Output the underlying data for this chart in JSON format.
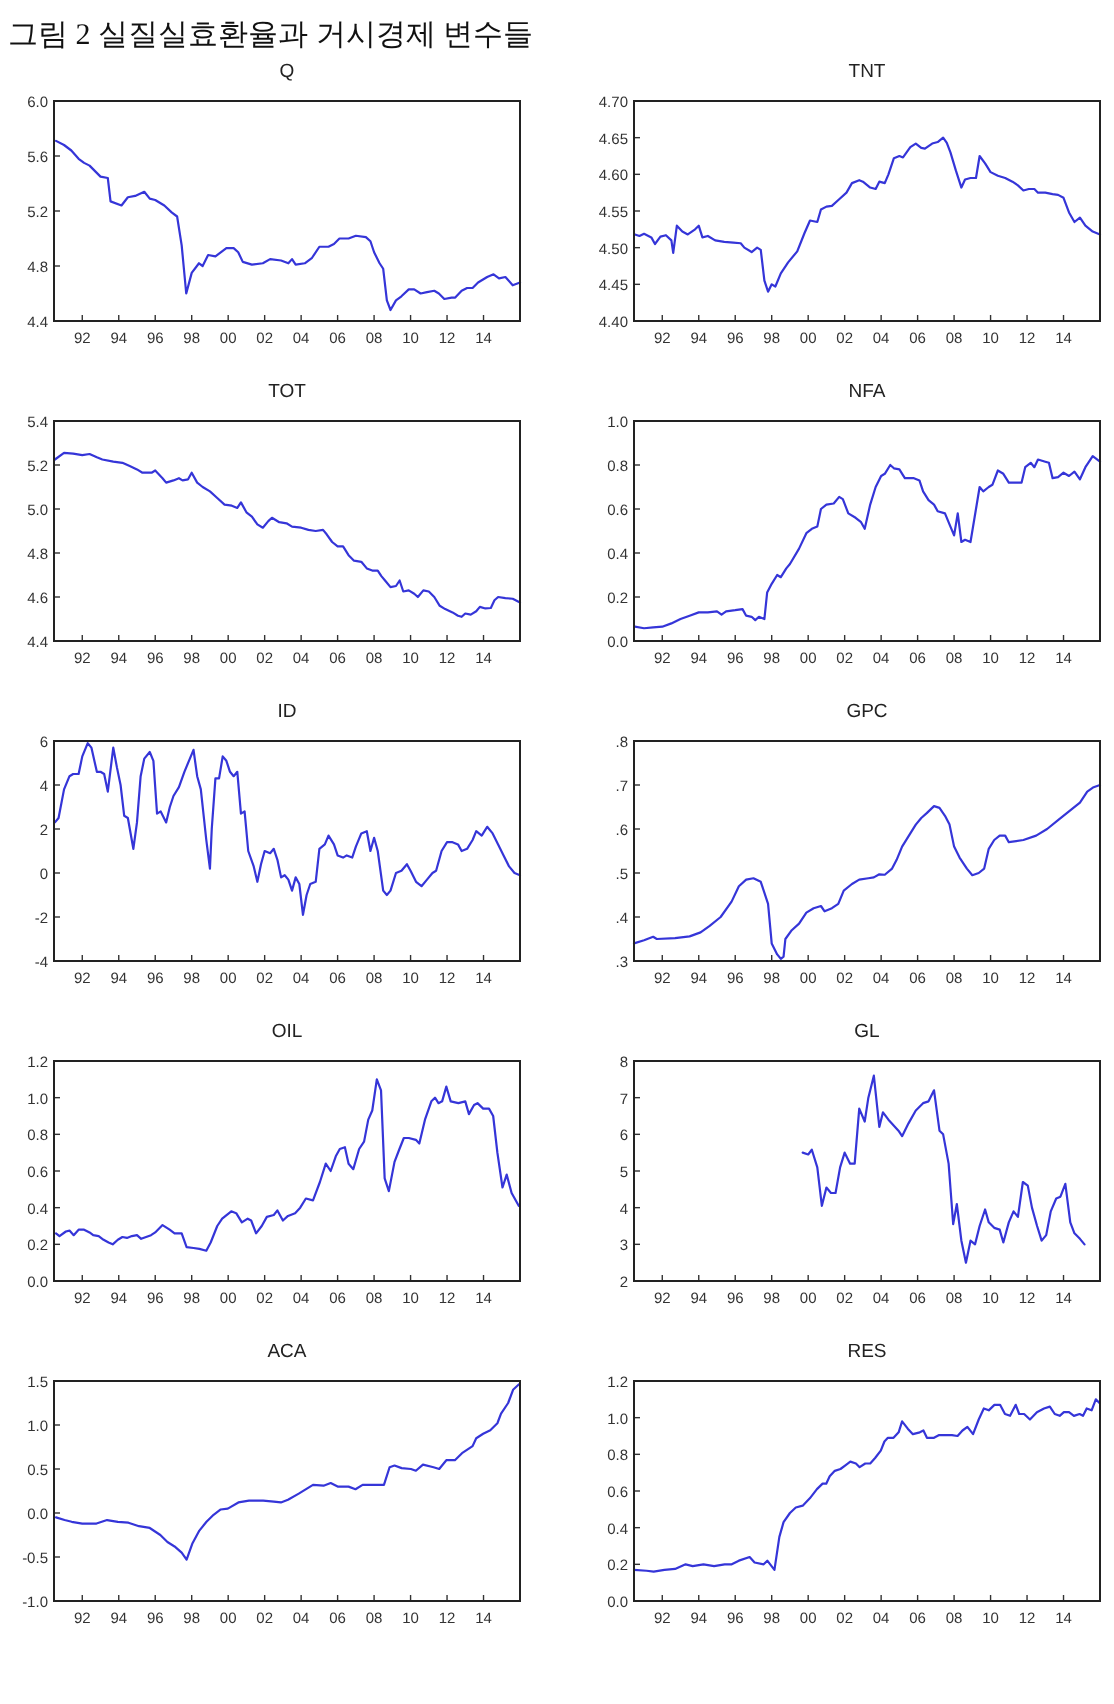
{
  "chart_data": [
    {
      "type": "line",
      "title": "Q",
      "annotations": [
        "그림 2 실질실효환율과 거시경제 변수들"
      ],
      "color": "#3535d8",
      "xlim": [
        1990.45,
        2016
      ],
      "xticks": [
        {
          "value": 1992,
          "label": "92"
        },
        {
          "value": 1994,
          "label": "94"
        },
        {
          "value": 1996,
          "label": "96"
        },
        {
          "value": 1998,
          "label": "98"
        },
        {
          "value": 2000,
          "label": "00"
        },
        {
          "value": 2002,
          "label": "02"
        },
        {
          "value": 2004,
          "label": "04"
        },
        {
          "value": 2006,
          "label": "06"
        },
        {
          "value": 2008,
          "label": "08"
        },
        {
          "value": 2010,
          "label": "10"
        },
        {
          "value": 2012,
          "label": "12"
        },
        {
          "value": 2014,
          "label": "14"
        }
      ],
      "ylim": [
        4.4,
        6.0
      ],
      "yticks": [
        {
          "value": 4.4,
          "label": "4.4"
        },
        {
          "value": 4.8,
          "label": "4.8"
        },
        {
          "value": 5.2,
          "label": "5.2"
        },
        {
          "value": 5.6,
          "label": "5.6"
        },
        {
          "value": 6,
          "label": "6.0"
        }
      ],
      "x": [
        1990.56,
        1991.0,
        1991.4,
        1991.8,
        1992.1,
        1992.4,
        1993.0,
        1993.4,
        1993.55,
        1994.15,
        1994.5,
        1994.9,
        1995.4,
        1995.7,
        1996.0,
        1996.5,
        1996.9,
        1997.2,
        1997.45,
        1997.7,
        1998.0,
        1998.4,
        1998.6,
        1998.9,
        1999.3,
        1999.9,
        2000.3,
        2000.55,
        2000.8,
        2001.3,
        2001.9,
        2002.3,
        2002.9,
        2003.3,
        2003.5,
        2003.7,
        2004.2,
        2004.6,
        2005.0,
        2005.5,
        2005.8,
        2006.1,
        2006.6,
        2007.0,
        2007.55,
        2007.8,
        2008.0,
        2008.3,
        2008.5,
        2008.7,
        2008.9,
        2009.2,
        2009.5,
        2009.9,
        2010.2,
        2010.55,
        2010.9,
        2011.3,
        2011.55,
        2011.85,
        2012.25,
        2012.45,
        2012.8,
        2013.1,
        2013.4,
        2013.7,
        2014.2,
        2014.55,
        2014.85,
        2015.2,
        2015.6,
        2016.0
      ],
      "values": [
        5.71,
        5.68,
        5.64,
        5.58,
        5.55,
        5.53,
        5.45,
        5.44,
        5.27,
        5.24,
        5.3,
        5.31,
        5.34,
        5.29,
        5.28,
        5.24,
        5.19,
        5.16,
        4.95,
        4.6,
        4.75,
        4.82,
        4.8,
        4.88,
        4.87,
        4.93,
        4.93,
        4.9,
        4.83,
        4.81,
        4.82,
        4.85,
        4.84,
        4.82,
        4.85,
        4.81,
        4.82,
        4.86,
        4.94,
        4.94,
        4.96,
        5.0,
        5.0,
        5.02,
        5.01,
        4.98,
        4.9,
        4.82,
        4.78,
        4.55,
        4.48,
        4.55,
        4.58,
        4.63,
        4.63,
        4.6,
        4.61,
        4.62,
        4.6,
        4.56,
        4.57,
        4.57,
        4.62,
        4.64,
        4.64,
        4.68,
        4.72,
        4.74,
        4.71,
        4.72,
        4.66,
        4.68
      ]
    },
    {
      "type": "line",
      "title": "TNT",
      "color": "#3535d8",
      "xlim": [
        1990.45,
        2016
      ],
      "xticks": [
        {
          "value": 1992,
          "label": "92"
        },
        {
          "value": 1994,
          "label": "94"
        },
        {
          "value": 1996,
          "label": "96"
        },
        {
          "value": 1998,
          "label": "98"
        },
        {
          "value": 2000,
          "label": "00"
        },
        {
          "value": 2002,
          "label": "02"
        },
        {
          "value": 2004,
          "label": "04"
        },
        {
          "value": 2006,
          "label": "06"
        },
        {
          "value": 2008,
          "label": "08"
        },
        {
          "value": 2010,
          "label": "10"
        },
        {
          "value": 2012,
          "label": "12"
        },
        {
          "value": 2014,
          "label": "14"
        }
      ],
      "ylim": [
        4.4,
        4.7
      ],
      "yticks": [
        {
          "value": 4.4,
          "label": "4.40"
        },
        {
          "value": 4.45,
          "label": "4.45"
        },
        {
          "value": 4.5,
          "label": "4.50"
        },
        {
          "value": 4.55,
          "label": "4.55"
        },
        {
          "value": 4.6,
          "label": "4.60"
        },
        {
          "value": 4.65,
          "label": "4.65"
        },
        {
          "value": 4.7,
          "label": "4.70"
        }
      ],
      "x": [
        1990.5,
        1990.75,
        1991.0,
        1991.4,
        1991.6,
        1991.9,
        1992.2,
        1992.5,
        1992.6,
        1992.8,
        1993.1,
        1993.4,
        1993.8,
        1994.0,
        1994.2,
        1994.5,
        1994.9,
        1995.4,
        1995.9,
        1996.3,
        1996.5,
        1996.9,
        1997.2,
        1997.4,
        1997.6,
        1997.8,
        1998.0,
        1998.2,
        1998.5,
        1998.9,
        1999.4,
        1999.8,
        2000.1,
        2000.5,
        2000.7,
        2001.0,
        2001.3,
        2001.7,
        2002.1,
        2002.4,
        2002.8,
        2003.0,
        2003.4,
        2003.7,
        2003.9,
        2004.2,
        2004.4,
        2004.7,
        2005.0,
        2005.2,
        2005.6,
        2005.9,
        2006.2,
        2006.4,
        2006.8,
        2007.1,
        2007.4,
        2007.6,
        2007.8,
        2008.1,
        2008.4,
        2008.6,
        2008.9,
        2009.2,
        2009.4,
        2009.7,
        2010.0,
        2010.4,
        2010.8,
        2011.2,
        2011.5,
        2011.8,
        2012.1,
        2012.4,
        2012.6,
        2013.0,
        2013.4,
        2013.7,
        2014.0,
        2014.3,
        2014.6,
        2014.9,
        2015.2,
        2015.6,
        2016.0
      ],
      "values": [
        4.518,
        4.516,
        4.519,
        4.514,
        4.505,
        4.515,
        4.517,
        4.51,
        4.493,
        4.53,
        4.522,
        4.518,
        4.525,
        4.53,
        4.514,
        4.516,
        4.51,
        4.508,
        4.507,
        4.506,
        4.5,
        4.494,
        4.5,
        4.497,
        4.455,
        4.44,
        4.45,
        4.447,
        4.465,
        4.48,
        4.495,
        4.52,
        4.537,
        4.535,
        4.552,
        4.556,
        4.557,
        4.566,
        4.575,
        4.588,
        4.592,
        4.59,
        4.582,
        4.58,
        4.59,
        4.588,
        4.6,
        4.622,
        4.625,
        4.623,
        4.637,
        4.642,
        4.636,
        4.635,
        4.642,
        4.644,
        4.65,
        4.643,
        4.63,
        4.605,
        4.582,
        4.593,
        4.595,
        4.595,
        4.625,
        4.615,
        4.603,
        4.598,
        4.595,
        4.59,
        4.585,
        4.578,
        4.58,
        4.58,
        4.575,
        4.575,
        4.573,
        4.572,
        4.568,
        4.548,
        4.535,
        4.541,
        4.53,
        4.522,
        4.518
      ]
    },
    {
      "type": "line",
      "title": "TOT",
      "color": "#3535d8",
      "xlim": [
        1990.45,
        2016
      ],
      "xticks": [
        {
          "value": 1992,
          "label": "92"
        },
        {
          "value": 1994,
          "label": "94"
        },
        {
          "value": 1996,
          "label": "96"
        },
        {
          "value": 1998,
          "label": "98"
        },
        {
          "value": 2000,
          "label": "00"
        },
        {
          "value": 2002,
          "label": "02"
        },
        {
          "value": 2004,
          "label": "04"
        },
        {
          "value": 2006,
          "label": "06"
        },
        {
          "value": 2008,
          "label": "08"
        },
        {
          "value": 2010,
          "label": "10"
        },
        {
          "value": 2012,
          "label": "12"
        },
        {
          "value": 2014,
          "label": "14"
        }
      ],
      "ylim": [
        4.4,
        5.4
      ],
      "yticks": [
        {
          "value": 4.4,
          "label": "4.4"
        },
        {
          "value": 4.6,
          "label": "4.6"
        },
        {
          "value": 4.8,
          "label": "4.8"
        },
        {
          "value": 5,
          "label": "5.0"
        },
        {
          "value": 5.2,
          "label": "5.2"
        },
        {
          "value": 5.4,
          "label": "5.4"
        }
      ],
      "x": [
        1990.5,
        1991.0,
        1991.5,
        1992.0,
        1992.4,
        1992.8,
        1993.1,
        1993.7,
        1994.2,
        1994.6,
        1995.0,
        1995.3,
        1995.8,
        1996.0,
        1996.4,
        1996.6,
        1997.0,
        1997.3,
        1997.5,
        1997.8,
        1998.0,
        1998.3,
        1998.6,
        1999.0,
        1999.4,
        1999.8,
        2000.2,
        2000.5,
        2000.7,
        2001.0,
        2001.3,
        2001.6,
        2001.9,
        2002.2,
        2002.4,
        2002.8,
        2003.2,
        2003.5,
        2004.0,
        2004.4,
        2004.8,
        2005.2,
        2005.4,
        2005.7,
        2006.0,
        2006.3,
        2006.6,
        2006.9,
        2007.3,
        2007.6,
        2007.9,
        2008.2,
        2008.4,
        2008.6,
        2008.9,
        2009.2,
        2009.4,
        2009.6,
        2009.9,
        2010.2,
        2010.4,
        2010.7,
        2011.0,
        2011.3,
        2011.6,
        2011.9,
        2012.3,
        2012.6,
        2012.8,
        2013.0,
        2013.3,
        2013.6,
        2013.8,
        2014.1,
        2014.4,
        2014.6,
        2014.8,
        2015.2,
        2015.6,
        2016.0
      ],
      "values": [
        5.225,
        5.255,
        5.252,
        5.245,
        5.25,
        5.235,
        5.225,
        5.215,
        5.21,
        5.195,
        5.18,
        5.165,
        5.165,
        5.175,
        5.14,
        5.12,
        5.13,
        5.14,
        5.13,
        5.135,
        5.165,
        5.12,
        5.1,
        5.08,
        5.05,
        5.02,
        5.015,
        5.005,
        5.03,
        4.985,
        4.965,
        4.93,
        4.915,
        4.945,
        4.96,
        4.94,
        4.935,
        4.92,
        4.915,
        4.905,
        4.9,
        4.905,
        4.885,
        4.85,
        4.83,
        4.83,
        4.79,
        4.765,
        4.76,
        4.73,
        4.72,
        4.72,
        4.695,
        4.675,
        4.645,
        4.65,
        4.675,
        4.625,
        4.63,
        4.615,
        4.6,
        4.63,
        4.625,
        4.6,
        4.56,
        4.545,
        4.53,
        4.515,
        4.51,
        4.525,
        4.52,
        4.535,
        4.555,
        4.548,
        4.55,
        4.585,
        4.6,
        4.595,
        4.592,
        4.575
      ]
    },
    {
      "type": "line",
      "title": "NFA",
      "color": "#3535d8",
      "xlim": [
        1990.45,
        2016
      ],
      "xticks": [
        {
          "value": 1992,
          "label": "92"
        },
        {
          "value": 1994,
          "label": "94"
        },
        {
          "value": 1996,
          "label": "96"
        },
        {
          "value": 1998,
          "label": "98"
        },
        {
          "value": 2000,
          "label": "00"
        },
        {
          "value": 2002,
          "label": "02"
        },
        {
          "value": 2004,
          "label": "04"
        },
        {
          "value": 2006,
          "label": "06"
        },
        {
          "value": 2008,
          "label": "08"
        },
        {
          "value": 2010,
          "label": "10"
        },
        {
          "value": 2012,
          "label": "12"
        },
        {
          "value": 2014,
          "label": "14"
        }
      ],
      "ylim": [
        0,
        1.0
      ],
      "yticks": [
        {
          "value": 0,
          "label": "0.0"
        },
        {
          "value": 0.2,
          "label": "0.2"
        },
        {
          "value": 0.4,
          "label": "0.4"
        },
        {
          "value": 0.6,
          "label": "0.6"
        },
        {
          "value": 0.8,
          "label": "0.8"
        },
        {
          "value": 1,
          "label": "1.0"
        }
      ],
      "x": [
        1990.5,
        1991.0,
        1991.5,
        1992.0,
        1992.5,
        1993.0,
        1993.5,
        1994.0,
        1994.5,
        1995.0,
        1995.25,
        1995.5,
        1996.0,
        1996.4,
        1996.6,
        1996.9,
        1997.1,
        1997.3,
        1997.6,
        1997.75,
        1998.0,
        1998.3,
        1998.5,
        1998.8,
        1999.0,
        1999.5,
        1999.9,
        2000.2,
        2000.5,
        2000.7,
        2001.0,
        2001.4,
        2001.7,
        2001.9,
        2002.2,
        2002.6,
        2002.9,
        2003.1,
        2003.4,
        2003.7,
        2004.0,
        2004.2,
        2004.5,
        2004.7,
        2005.0,
        2005.3,
        2005.8,
        2006.1,
        2006.3,
        2006.6,
        2006.9,
        2007.1,
        2007.5,
        2007.8,
        2008.0,
        2008.2,
        2008.4,
        2008.6,
        2008.9,
        2009.2,
        2009.4,
        2009.6,
        2009.9,
        2010.1,
        2010.4,
        2010.7,
        2011.0,
        2011.4,
        2011.7,
        2011.9,
        2012.2,
        2012.4,
        2012.6,
        2013.0,
        2013.2,
        2013.4,
        2013.7,
        2014.0,
        2014.3,
        2014.6,
        2014.9,
        2015.2,
        2015.6,
        2016.0
      ],
      "values": [
        0.065,
        0.058,
        0.062,
        0.065,
        0.08,
        0.1,
        0.115,
        0.13,
        0.13,
        0.135,
        0.12,
        0.135,
        0.14,
        0.145,
        0.115,
        0.11,
        0.095,
        0.11,
        0.1,
        0.22,
        0.26,
        0.3,
        0.29,
        0.33,
        0.35,
        0.42,
        0.49,
        0.51,
        0.52,
        0.6,
        0.62,
        0.625,
        0.655,
        0.645,
        0.58,
        0.56,
        0.54,
        0.51,
        0.62,
        0.7,
        0.75,
        0.76,
        0.8,
        0.785,
        0.78,
        0.74,
        0.74,
        0.73,
        0.68,
        0.64,
        0.62,
        0.59,
        0.58,
        0.52,
        0.48,
        0.58,
        0.45,
        0.46,
        0.45,
        0.6,
        0.7,
        0.68,
        0.7,
        0.71,
        0.775,
        0.76,
        0.72,
        0.72,
        0.72,
        0.79,
        0.81,
        0.79,
        0.825,
        0.815,
        0.81,
        0.74,
        0.745,
        0.765,
        0.75,
        0.77,
        0.735,
        0.79,
        0.84,
        0.815
      ]
    },
    {
      "type": "line",
      "title": "ID",
      "color": "#3535d8",
      "xlim": [
        1990.45,
        2016
      ],
      "xticks": [
        {
          "value": 1992,
          "label": "92"
        },
        {
          "value": 1994,
          "label": "94"
        },
        {
          "value": 1996,
          "label": "96"
        },
        {
          "value": 1998,
          "label": "98"
        },
        {
          "value": 2000,
          "label": "00"
        },
        {
          "value": 2002,
          "label": "02"
        },
        {
          "value": 2004,
          "label": "04"
        },
        {
          "value": 2006,
          "label": "06"
        },
        {
          "value": 2008,
          "label": "08"
        },
        {
          "value": 2010,
          "label": "10"
        },
        {
          "value": 2012,
          "label": "12"
        },
        {
          "value": 2014,
          "label": "14"
        }
      ],
      "ylim": [
        -4,
        6
      ],
      "yticks": [
        -4,
        -2,
        0,
        2,
        4,
        6
      ],
      "x": [
        1990.5,
        1990.7,
        1991.0,
        1991.3,
        1991.5,
        1991.8,
        1992.0,
        1992.3,
        1992.5,
        1992.8,
        1993.0,
        1993.2,
        1993.4,
        1993.7,
        1993.9,
        1994.1,
        1994.3,
        1994.5,
        1994.8,
        1995.0,
        1995.2,
        1995.4,
        1995.7,
        1995.9,
        1996.1,
        1996.3,
        1996.6,
        1996.8,
        1997.0,
        1997.3,
        1997.6,
        1997.9,
        1998.1,
        1998.3,
        1998.5,
        1998.8,
        1999.0,
        1999.1,
        1999.3,
        1999.5,
        1999.7,
        1999.9,
        2000.1,
        2000.3,
        2000.5,
        2000.7,
        2000.9,
        2001.1,
        2001.4,
        2001.6,
        2001.8,
        2002.0,
        2002.3,
        2002.5,
        2002.7,
        2002.9,
        2003.1,
        2003.3,
        2003.5,
        2003.7,
        2003.9,
        2004.1,
        2004.3,
        2004.5,
        2004.8,
        2005.0,
        2005.3,
        2005.5,
        2005.8,
        2006.0,
        2006.3,
        2006.5,
        2006.8,
        2007.0,
        2007.3,
        2007.6,
        2007.8,
        2008.0,
        2008.2,
        2008.5,
        2008.7,
        2008.9,
        2009.2,
        2009.5,
        2009.8,
        2010.0,
        2010.3,
        2010.6,
        2010.9,
        2011.2,
        2011.4,
        2011.7,
        2012.0,
        2012.3,
        2012.6,
        2012.8,
        2013.1,
        2013.4,
        2013.6,
        2013.9,
        2014.2,
        2014.5,
        2014.8,
        2015.1,
        2015.4,
        2015.7,
        2016.0
      ],
      "values": [
        2.3,
        2.5,
        3.8,
        4.4,
        4.5,
        4.5,
        5.3,
        5.9,
        5.7,
        4.6,
        4.6,
        4.5,
        3.7,
        5.7,
        4.8,
        4.0,
        2.6,
        2.5,
        1.1,
        2.3,
        4.4,
        5.2,
        5.5,
        5.1,
        2.7,
        2.8,
        2.3,
        3.0,
        3.5,
        3.9,
        4.6,
        5.2,
        5.6,
        4.4,
        3.8,
        1.5,
        0.2,
        2.0,
        4.3,
        4.3,
        5.3,
        5.1,
        4.6,
        4.4,
        4.6,
        2.7,
        2.8,
        1.0,
        0.3,
        -0.4,
        0.4,
        1.0,
        0.9,
        1.1,
        0.6,
        -0.2,
        -0.1,
        -0.3,
        -0.8,
        -0.2,
        -0.5,
        -1.9,
        -1.0,
        -0.5,
        -0.4,
        1.1,
        1.3,
        1.7,
        1.3,
        0.8,
        0.7,
        0.8,
        0.7,
        1.2,
        1.8,
        1.9,
        1.0,
        1.6,
        1.0,
        -0.8,
        -1.0,
        -0.8,
        0.0,
        0.1,
        0.4,
        0.1,
        -0.4,
        -0.6,
        -0.3,
        0.0,
        0.1,
        1.0,
        1.4,
        1.4,
        1.3,
        1.0,
        1.1,
        1.5,
        1.9,
        1.7,
        2.1,
        1.8,
        1.3,
        0.8,
        0.3,
        0.0,
        -0.1
      ]
    },
    {
      "type": "line",
      "title": "GPC",
      "color": "#3535d8",
      "xlim": [
        1990.45,
        2016
      ],
      "xticks": [
        {
          "value": 1992,
          "label": "92"
        },
        {
          "value": 1994,
          "label": "94"
        },
        {
          "value": 1996,
          "label": "96"
        },
        {
          "value": 1998,
          "label": "98"
        },
        {
          "value": 2000,
          "label": "00"
        },
        {
          "value": 2002,
          "label": "02"
        },
        {
          "value": 2004,
          "label": "04"
        },
        {
          "value": 2006,
          "label": "06"
        },
        {
          "value": 2008,
          "label": "08"
        },
        {
          "value": 2010,
          "label": "10"
        },
        {
          "value": 2012,
          "label": "12"
        },
        {
          "value": 2014,
          "label": "14"
        }
      ],
      "ylim": [
        0.3,
        0.8
      ],
      "yticks": [
        {
          "value": 0.3,
          "label": ".3"
        },
        {
          "value": 0.4,
          "label": ".4"
        },
        {
          "value": 0.5,
          "label": ".5"
        },
        {
          "value": 0.6,
          "label": ".6"
        },
        {
          "value": 0.7,
          "label": ".7"
        },
        {
          "value": 0.8,
          "label": ".8"
        }
      ],
      "x": [
        1990.45,
        1991.0,
        1991.5,
        1991.7,
        1992.7,
        1993.5,
        1994.1,
        1994.6,
        1995.2,
        1995.8,
        1996.2,
        1996.6,
        1997.0,
        1997.4,
        1997.8,
        1998.0,
        1998.3,
        1998.5,
        1998.65,
        1998.75,
        1999.1,
        1999.5,
        1999.9,
        2000.3,
        2000.7,
        2000.9,
        2001.3,
        2001.65,
        2001.95,
        2002.4,
        2002.8,
        2003.3,
        2003.6,
        2003.9,
        2004.2,
        2004.6,
        2004.85,
        2005.15,
        2005.6,
        2005.9,
        2006.2,
        2006.5,
        2006.9,
        2007.2,
        2007.5,
        2007.75,
        2008.0,
        2008.3,
        2008.7,
        2009.0,
        2009.35,
        2009.65,
        2009.9,
        2010.2,
        2010.5,
        2010.8,
        2011.0,
        2011.8,
        2012.5,
        2013.1,
        2013.7,
        2014.3,
        2014.9,
        2015.3,
        2015.65,
        2016.0
      ],
      "values": [
        0.34,
        0.347,
        0.355,
        0.35,
        0.352,
        0.356,
        0.365,
        0.38,
        0.4,
        0.435,
        0.47,
        0.485,
        0.488,
        0.48,
        0.43,
        0.34,
        0.315,
        0.305,
        0.31,
        0.35,
        0.37,
        0.385,
        0.41,
        0.42,
        0.425,
        0.413,
        0.42,
        0.43,
        0.46,
        0.475,
        0.485,
        0.488,
        0.49,
        0.497,
        0.496,
        0.51,
        0.53,
        0.56,
        0.59,
        0.61,
        0.625,
        0.636,
        0.652,
        0.648,
        0.63,
        0.61,
        0.56,
        0.535,
        0.51,
        0.495,
        0.5,
        0.51,
        0.555,
        0.575,
        0.585,
        0.585,
        0.57,
        0.575,
        0.585,
        0.6,
        0.62,
        0.64,
        0.66,
        0.685,
        0.695,
        0.7
      ]
    },
    {
      "type": "line",
      "title": "OIL",
      "color": "#3535d8",
      "xlim": [
        1990.45,
        2016
      ],
      "xticks": [
        {
          "value": 1992,
          "label": "92"
        },
        {
          "value": 1994,
          "label": "94"
        },
        {
          "value": 1996,
          "label": "96"
        },
        {
          "value": 1998,
          "label": "98"
        },
        {
          "value": 2000,
          "label": "00"
        },
        {
          "value": 2002,
          "label": "02"
        },
        {
          "value": 2004,
          "label": "04"
        },
        {
          "value": 2006,
          "label": "06"
        },
        {
          "value": 2008,
          "label": "08"
        },
        {
          "value": 2010,
          "label": "10"
        },
        {
          "value": 2012,
          "label": "12"
        },
        {
          "value": 2014,
          "label": "14"
        }
      ],
      "ylim": [
        0,
        1.2
      ],
      "yticks": [
        {
          "value": 0,
          "label": "0.0"
        },
        {
          "value": 0.2,
          "label": "0.2"
        },
        {
          "value": 0.4,
          "label": "0.4"
        },
        {
          "value": 0.6,
          "label": "0.6"
        },
        {
          "value": 0.8,
          "label": "0.8"
        },
        {
          "value": 1,
          "label": "1.0"
        },
        {
          "value": 1.2,
          "label": "1.2"
        }
      ],
      "x": [
        1990.56,
        1990.75,
        1991.1,
        1991.3,
        1991.53,
        1991.8,
        1992.1,
        1992.4,
        1992.6,
        1992.9,
        1993.17,
        1993.44,
        1993.67,
        1993.95,
        1994.2,
        1994.45,
        1994.72,
        1995.0,
        1995.23,
        1995.5,
        1995.77,
        1996.0,
        1996.4,
        1996.79,
        1997.06,
        1997.45,
        1997.72,
        1998.1,
        1998.42,
        1998.8,
        1999.04,
        1999.4,
        1999.67,
        2000.17,
        2000.44,
        2000.75,
        2001.07,
        2001.26,
        2001.53,
        2001.84,
        2002.12,
        2002.5,
        2002.7,
        2003.0,
        2003.28,
        2003.67,
        2003.95,
        2004.26,
        2004.65,
        2005.03,
        2005.35,
        2005.62,
        2005.9,
        2006.12,
        2006.4,
        2006.6,
        2006.86,
        2007.18,
        2007.45,
        2007.68,
        2007.9,
        2008.15,
        2008.38,
        2008.58,
        2008.81,
        2009.12,
        2009.39,
        2009.63,
        2009.9,
        2010.29,
        2010.48,
        2010.79,
        2011.14,
        2011.34,
        2011.53,
        2011.73,
        2011.96,
        2012.2,
        2012.62,
        2013.0,
        2013.2,
        2013.48,
        2013.67,
        2013.98,
        2014.3,
        2014.53,
        2014.76,
        2015.04,
        2015.27,
        2015.54,
        2015.93
      ],
      "values": [
        0.26,
        0.245,
        0.27,
        0.275,
        0.25,
        0.28,
        0.28,
        0.265,
        0.25,
        0.245,
        0.225,
        0.21,
        0.2,
        0.225,
        0.24,
        0.235,
        0.245,
        0.25,
        0.23,
        0.24,
        0.25,
        0.265,
        0.305,
        0.28,
        0.26,
        0.26,
        0.185,
        0.18,
        0.175,
        0.165,
        0.21,
        0.3,
        0.34,
        0.38,
        0.37,
        0.32,
        0.34,
        0.33,
        0.26,
        0.3,
        0.35,
        0.36,
        0.385,
        0.33,
        0.355,
        0.37,
        0.4,
        0.45,
        0.44,
        0.54,
        0.64,
        0.6,
        0.68,
        0.72,
        0.73,
        0.64,
        0.61,
        0.72,
        0.76,
        0.88,
        0.93,
        1.1,
        1.04,
        0.56,
        0.49,
        0.65,
        0.72,
        0.78,
        0.78,
        0.77,
        0.75,
        0.88,
        0.98,
        1.0,
        0.97,
        0.98,
        1.06,
        0.98,
        0.97,
        0.98,
        0.91,
        0.96,
        0.97,
        0.94,
        0.94,
        0.9,
        0.7,
        0.51,
        0.58,
        0.48,
        0.41
      ]
    },
    {
      "type": "line",
      "title": "GL",
      "color": "#3535d8",
      "xlim": [
        1990.45,
        2016
      ],
      "xticks": [
        {
          "value": 1992,
          "label": "92"
        },
        {
          "value": 1994,
          "label": "94"
        },
        {
          "value": 1996,
          "label": "96"
        },
        {
          "value": 1998,
          "label": "98"
        },
        {
          "value": 2000,
          "label": "00"
        },
        {
          "value": 2002,
          "label": "02"
        },
        {
          "value": 2004,
          "label": "04"
        },
        {
          "value": 2006,
          "label": "06"
        },
        {
          "value": 2008,
          "label": "08"
        },
        {
          "value": 2010,
          "label": "10"
        },
        {
          "value": 2012,
          "label": "12"
        },
        {
          "value": 2014,
          "label": "14"
        }
      ],
      "ylim": [
        2,
        8
      ],
      "yticks": [
        2,
        3,
        4,
        5,
        6,
        7,
        8
      ],
      "x": [
        1999.7,
        2000.0,
        2000.2,
        2000.5,
        2000.75,
        2001.0,
        2001.25,
        2001.5,
        2001.75,
        2002.0,
        2002.3,
        2002.55,
        2002.8,
        2003.1,
        2003.3,
        2003.6,
        2003.9,
        2004.1,
        2004.4,
        2004.95,
        2005.15,
        2005.5,
        2005.9,
        2006.3,
        2006.6,
        2006.9,
        2007.2,
        2007.4,
        2007.7,
        2007.95,
        2008.15,
        2008.4,
        2008.65,
        2008.9,
        2009.15,
        2009.4,
        2009.7,
        2009.9,
        2010.2,
        2010.5,
        2010.7,
        2011.0,
        2011.26,
        2011.5,
        2011.77,
        2012.04,
        2012.27,
        2012.55,
        2012.8,
        2013.05,
        2013.3,
        2013.6,
        2013.83,
        2014.1,
        2014.37,
        2014.6,
        2014.9,
        2015.15
      ],
      "values": [
        5.5,
        5.45,
        5.58,
        5.1,
        4.05,
        4.55,
        4.4,
        4.4,
        5.1,
        5.5,
        5.2,
        5.2,
        6.7,
        6.35,
        7.0,
        7.6,
        6.2,
        6.6,
        6.4,
        6.1,
        5.95,
        6.3,
        6.65,
        6.85,
        6.9,
        7.2,
        6.1,
        6.0,
        5.2,
        3.55,
        4.1,
        3.1,
        2.5,
        3.1,
        3.0,
        3.5,
        3.95,
        3.6,
        3.45,
        3.4,
        3.05,
        3.6,
        3.9,
        3.75,
        4.7,
        4.6,
        4.0,
        3.5,
        3.1,
        3.25,
        3.9,
        4.25,
        4.3,
        4.65,
        3.6,
        3.3,
        3.15,
        3.0
      ]
    },
    {
      "type": "line",
      "title": "ACA",
      "color": "#3535d8",
      "xlim": [
        1990.45,
        2016
      ],
      "xticks": [
        {
          "value": 1992,
          "label": "92"
        },
        {
          "value": 1994,
          "label": "94"
        },
        {
          "value": 1996,
          "label": "96"
        },
        {
          "value": 1998,
          "label": "98"
        },
        {
          "value": 2000,
          "label": "00"
        },
        {
          "value": 2002,
          "label": "02"
        },
        {
          "value": 2004,
          "label": "04"
        },
        {
          "value": 2006,
          "label": "06"
        },
        {
          "value": 2008,
          "label": "08"
        },
        {
          "value": 2010,
          "label": "10"
        },
        {
          "value": 2012,
          "label": "12"
        },
        {
          "value": 2014,
          "label": "14"
        }
      ],
      "ylim": [
        -1.0,
        1.5
      ],
      "yticks": [
        {
          "value": -1,
          "label": "-1.0"
        },
        {
          "value": -0.5,
          "label": "-0.5"
        },
        {
          "value": 0,
          "label": "0.0"
        },
        {
          "value": 0.5,
          "label": "0.5"
        },
        {
          "value": 1,
          "label": "1.0"
        },
        {
          "value": 1.5,
          "label": "1.5"
        }
      ],
      "x": [
        1990.56,
        1991.03,
        1991.42,
        1992.0,
        1992.78,
        1993.36,
        1993.95,
        1994.53,
        1995.11,
        1995.7,
        1996.28,
        1996.67,
        1997.06,
        1997.45,
        1997.72,
        1998.03,
        1998.42,
        1998.81,
        1999.2,
        1999.59,
        1999.98,
        2000.56,
        2001.14,
        2001.92,
        2002.5,
        2002.89,
        2003.28,
        2003.87,
        2004.65,
        2005.23,
        2005.62,
        2006.0,
        2006.6,
        2006.98,
        2007.37,
        2007.95,
        2008.54,
        2008.85,
        2009.12,
        2009.51,
        2010.02,
        2010.29,
        2010.68,
        2011.26,
        2011.57,
        2011.96,
        2012.43,
        2012.82,
        2013.4,
        2013.6,
        2013.98,
        2014.37,
        2014.76,
        2014.96,
        2015.35,
        2015.62,
        2015.93
      ],
      "values": [
        -0.05,
        -0.08,
        -0.1,
        -0.12,
        -0.12,
        -0.08,
        -0.1,
        -0.11,
        -0.15,
        -0.17,
        -0.25,
        -0.33,
        -0.38,
        -0.45,
        -0.53,
        -0.35,
        -0.2,
        -0.1,
        -0.02,
        0.04,
        0.05,
        0.12,
        0.14,
        0.14,
        0.13,
        0.12,
        0.15,
        0.22,
        0.32,
        0.31,
        0.34,
        0.3,
        0.3,
        0.27,
        0.32,
        0.32,
        0.32,
        0.52,
        0.54,
        0.51,
        0.5,
        0.48,
        0.55,
        0.52,
        0.5,
        0.6,
        0.6,
        0.68,
        0.76,
        0.85,
        0.9,
        0.94,
        1.02,
        1.13,
        1.25,
        1.4,
        1.46
      ]
    },
    {
      "type": "line",
      "title": "RES",
      "color": "#3535d8",
      "xlim": [
        1990.45,
        2016
      ],
      "xticks": [
        {
          "value": 1992,
          "label": "92"
        },
        {
          "value": 1994,
          "label": "94"
        },
        {
          "value": 1996,
          "label": "96"
        },
        {
          "value": 1998,
          "label": "98"
        },
        {
          "value": 2000,
          "label": "00"
        },
        {
          "value": 2002,
          "label": "02"
        },
        {
          "value": 2004,
          "label": "04"
        },
        {
          "value": 2006,
          "label": "06"
        },
        {
          "value": 2008,
          "label": "08"
        },
        {
          "value": 2010,
          "label": "10"
        },
        {
          "value": 2012,
          "label": "12"
        },
        {
          "value": 2014,
          "label": "14"
        }
      ],
      "ylim": [
        0,
        1.2
      ],
      "yticks": [
        {
          "value": 0,
          "label": "0.0"
        },
        {
          "value": 0.2,
          "label": "0.2"
        },
        {
          "value": 0.4,
          "label": "0.4"
        },
        {
          "value": 0.6,
          "label": "0.6"
        },
        {
          "value": 0.8,
          "label": "0.8"
        },
        {
          "value": 1,
          "label": "1.0"
        },
        {
          "value": 1.2,
          "label": "1.2"
        }
      ],
      "x": [
        1990.45,
        1991.14,
        1991.53,
        1992.12,
        1992.7,
        1993.28,
        1993.67,
        1994.26,
        1994.84,
        1995.42,
        1995.81,
        1996.2,
        1996.79,
        1997.06,
        1997.56,
        1997.76,
        1998.15,
        1998.42,
        1998.65,
        1999.0,
        1999.32,
        1999.7,
        2000.09,
        2000.48,
        2000.79,
        2000.99,
        2001.18,
        2001.46,
        2001.77,
        2002.04,
        2002.31,
        2002.62,
        2002.82,
        2003.13,
        2003.4,
        2003.67,
        2003.98,
        2004.18,
        2004.37,
        2004.68,
        2004.96,
        2005.15,
        2005.46,
        2005.74,
        2006.12,
        2006.32,
        2006.51,
        2006.9,
        2007.18,
        2007.49,
        2007.88,
        2008.19,
        2008.46,
        2008.73,
        2009.04,
        2009.35,
        2009.63,
        2009.9,
        2010.21,
        2010.52,
        2010.79,
        2011.07,
        2011.38,
        2011.57,
        2011.84,
        2012.16,
        2012.54,
        2012.93,
        2013.25,
        2013.52,
        2013.79,
        2014.02,
        2014.3,
        2014.57,
        2014.88,
        2015.07,
        2015.27,
        2015.54,
        2015.77,
        2015.97
      ],
      "values": [
        0.17,
        0.165,
        0.16,
        0.17,
        0.175,
        0.2,
        0.19,
        0.2,
        0.19,
        0.2,
        0.2,
        0.22,
        0.24,
        0.21,
        0.2,
        0.22,
        0.17,
        0.35,
        0.43,
        0.48,
        0.51,
        0.52,
        0.56,
        0.61,
        0.64,
        0.64,
        0.68,
        0.71,
        0.72,
        0.74,
        0.76,
        0.75,
        0.73,
        0.75,
        0.75,
        0.78,
        0.82,
        0.87,
        0.89,
        0.89,
        0.92,
        0.98,
        0.94,
        0.91,
        0.92,
        0.93,
        0.89,
        0.89,
        0.905,
        0.905,
        0.905,
        0.9,
        0.93,
        0.95,
        0.91,
        0.99,
        1.05,
        1.04,
        1.07,
        1.07,
        1.02,
        1.01,
        1.07,
        1.02,
        1.02,
        0.99,
        1.03,
        1.05,
        1.06,
        1.02,
        1.01,
        1.03,
        1.03,
        1.01,
        1.02,
        1.01,
        1.05,
        1.04,
        1.1,
        1.08
      ]
    }
  ]
}
